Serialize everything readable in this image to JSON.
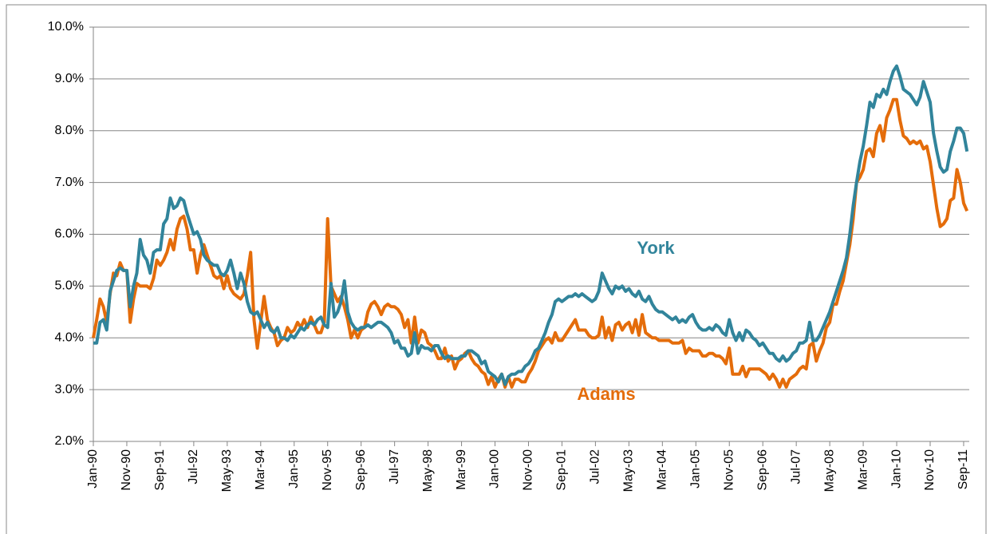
{
  "chart_data": {
    "type": "line",
    "categories": [
      "Jan-90",
      null,
      null,
      null,
      null,
      null,
      null,
      null,
      null,
      null,
      "Nov-90",
      null,
      null,
      null,
      null,
      null,
      null,
      null,
      null,
      null,
      "Sep-91",
      null,
      null,
      null,
      null,
      null,
      null,
      null,
      null,
      null,
      "Jul-92",
      null,
      null,
      null,
      null,
      null,
      null,
      null,
      null,
      null,
      "May-93",
      null,
      null,
      null,
      null,
      null,
      null,
      null,
      null,
      null,
      "Mar-94",
      null,
      null,
      null,
      null,
      null,
      null,
      null,
      null,
      null,
      "Jan-95",
      null,
      null,
      null,
      null,
      null,
      null,
      null,
      null,
      null,
      "Nov-95",
      null,
      null,
      null,
      null,
      null,
      null,
      null,
      null,
      null,
      "Sep-96",
      null,
      null,
      null,
      null,
      null,
      null,
      null,
      null,
      null,
      "Jul-97",
      null,
      null,
      null,
      null,
      null,
      null,
      null,
      null,
      null,
      "May-98",
      null,
      null,
      null,
      null,
      null,
      null,
      null,
      null,
      null,
      "Mar-99",
      null,
      null,
      null,
      null,
      null,
      null,
      null,
      null,
      null,
      "Jan-00",
      null,
      null,
      null,
      null,
      null,
      null,
      null,
      null,
      null,
      "Nov-00",
      null,
      null,
      null,
      null,
      null,
      null,
      null,
      null,
      null,
      "Sep-01",
      null,
      null,
      null,
      null,
      null,
      null,
      null,
      null,
      null,
      "Jul-02",
      null,
      null,
      null,
      null,
      null,
      null,
      null,
      null,
      null,
      "May-03",
      null,
      null,
      null,
      null,
      null,
      null,
      null,
      null,
      null,
      "Mar-04",
      null,
      null,
      null,
      null,
      null,
      null,
      null,
      null,
      null,
      "Jan-05",
      null,
      null,
      null,
      null,
      null,
      null,
      null,
      null,
      null,
      "Nov-05",
      null,
      null,
      null,
      null,
      null,
      null,
      null,
      null,
      null,
      "Sep-06",
      null,
      null,
      null,
      null,
      null,
      null,
      null,
      null,
      null,
      "Jul-07",
      null,
      null,
      null,
      null,
      null,
      null,
      null,
      null,
      null,
      "May-08",
      null,
      null,
      null,
      null,
      null,
      null,
      null,
      null,
      null,
      "Mar-09",
      null,
      null,
      null,
      null,
      null,
      null,
      null,
      null,
      null,
      "Jan-10",
      null,
      null,
      null,
      null,
      null,
      null,
      null,
      null,
      null,
      "Nov-10",
      null,
      null,
      null,
      null,
      null,
      null,
      null,
      null,
      null,
      "Sep-11",
      null
    ],
    "series": [
      {
        "name": "York",
        "color": "#31849b",
        "values": [
          3.9,
          3.9,
          4.3,
          4.35,
          4.15,
          4.9,
          5.1,
          5.3,
          5.35,
          5.3,
          5.3,
          4.6,
          5.0,
          5.25,
          5.9,
          5.6,
          5.5,
          5.25,
          5.65,
          5.7,
          5.7,
          6.2,
          6.3,
          6.7,
          6.5,
          6.55,
          6.7,
          6.65,
          6.4,
          6.2,
          6.0,
          6.05,
          5.9,
          5.6,
          5.5,
          5.45,
          5.4,
          5.4,
          5.25,
          5.2,
          5.3,
          5.5,
          5.25,
          4.95,
          5.25,
          5.05,
          4.7,
          4.5,
          4.45,
          4.5,
          4.35,
          4.2,
          4.3,
          4.15,
          4.1,
          4.2,
          4.0,
          4.0,
          3.95,
          4.05,
          4.0,
          4.1,
          4.2,
          4.15,
          4.25,
          4.3,
          4.25,
          4.35,
          4.4,
          4.25,
          4.2,
          5.05,
          4.4,
          4.5,
          4.7,
          5.1,
          4.5,
          4.3,
          4.2,
          4.15,
          4.2,
          4.2,
          4.25,
          4.2,
          4.25,
          4.3,
          4.3,
          4.25,
          4.2,
          4.1,
          3.9,
          3.95,
          3.8,
          3.8,
          3.65,
          3.7,
          4.1,
          3.7,
          3.85,
          3.8,
          3.8,
          3.75,
          3.85,
          3.85,
          3.7,
          3.6,
          3.65,
          3.6,
          3.6,
          3.6,
          3.65,
          3.65,
          3.75,
          3.75,
          3.7,
          3.65,
          3.5,
          3.55,
          3.35,
          3.3,
          3.25,
          3.15,
          3.3,
          3.1,
          3.25,
          3.3,
          3.3,
          3.35,
          3.35,
          3.45,
          3.5,
          3.6,
          3.75,
          3.8,
          3.95,
          4.1,
          4.3,
          4.45,
          4.7,
          4.75,
          4.7,
          4.75,
          4.8,
          4.8,
          4.85,
          4.8,
          4.85,
          4.8,
          4.75,
          4.7,
          4.75,
          4.9,
          5.25,
          5.1,
          4.95,
          4.85,
          5.0,
          4.95,
          5.0,
          4.9,
          4.95,
          4.85,
          4.8,
          4.9,
          4.75,
          4.7,
          4.8,
          4.65,
          4.55,
          4.5,
          4.5,
          4.45,
          4.4,
          4.35,
          4.4,
          4.3,
          4.35,
          4.3,
          4.4,
          4.45,
          4.3,
          4.2,
          4.15,
          4.15,
          4.2,
          4.15,
          4.25,
          4.2,
          4.1,
          4.05,
          4.35,
          4.1,
          3.95,
          4.1,
          3.95,
          4.15,
          4.1,
          4.0,
          3.95,
          3.85,
          3.9,
          3.8,
          3.7,
          3.7,
          3.6,
          3.55,
          3.65,
          3.55,
          3.6,
          3.7,
          3.75,
          3.9,
          3.9,
          3.95,
          4.3,
          3.95,
          3.95,
          4.05,
          4.2,
          4.35,
          4.5,
          4.7,
          4.9,
          5.1,
          5.3,
          5.55,
          6.0,
          6.55,
          7.0,
          7.4,
          7.7,
          8.1,
          8.55,
          8.45,
          8.7,
          8.65,
          8.8,
          8.7,
          8.95,
          9.15,
          9.25,
          9.05,
          8.8,
          8.75,
          8.7,
          8.6,
          8.5,
          8.65,
          8.95,
          8.75,
          8.55,
          7.95,
          7.6,
          7.3,
          7.2,
          7.25,
          7.6,
          7.8,
          8.05,
          8.05,
          7.95,
          7.6
        ]
      },
      {
        "name": "Adams",
        "color": "#e46c0a",
        "values": [
          4.0,
          4.35,
          4.75,
          4.6,
          4.3,
          4.85,
          5.25,
          5.2,
          5.45,
          5.3,
          5.3,
          4.3,
          4.75,
          5.05,
          5.0,
          5.0,
          5.0,
          4.95,
          5.15,
          5.5,
          5.4,
          5.5,
          5.65,
          5.9,
          5.7,
          6.1,
          6.3,
          6.35,
          6.1,
          5.7,
          5.7,
          5.25,
          5.6,
          5.8,
          5.6,
          5.4,
          5.2,
          5.15,
          5.2,
          4.95,
          5.2,
          4.95,
          4.85,
          4.8,
          4.75,
          4.85,
          5.2,
          5.65,
          4.35,
          3.8,
          4.3,
          4.8,
          4.35,
          4.2,
          4.1,
          3.85,
          3.95,
          4.0,
          4.2,
          4.1,
          4.15,
          4.3,
          4.2,
          4.35,
          4.2,
          4.4,
          4.25,
          4.1,
          4.1,
          4.3,
          6.3,
          5.0,
          4.85,
          4.7,
          4.8,
          4.6,
          4.35,
          4.0,
          4.15,
          4.0,
          4.15,
          4.2,
          4.5,
          4.65,
          4.7,
          4.6,
          4.45,
          4.6,
          4.65,
          4.6,
          4.6,
          4.55,
          4.45,
          4.2,
          4.35,
          3.9,
          4.4,
          3.9,
          4.15,
          4.1,
          3.9,
          3.85,
          3.75,
          3.6,
          3.6,
          3.8,
          3.55,
          3.65,
          3.4,
          3.55,
          3.6,
          3.7,
          3.75,
          3.6,
          3.5,
          3.45,
          3.35,
          3.3,
          3.1,
          3.25,
          3.05,
          3.2,
          3.3,
          3.05,
          3.25,
          3.05,
          3.2,
          3.2,
          3.15,
          3.15,
          3.3,
          3.4,
          3.55,
          3.75,
          3.85,
          3.95,
          4.0,
          3.9,
          4.1,
          3.95,
          3.95,
          4.05,
          4.15,
          4.25,
          4.35,
          4.15,
          4.15,
          4.15,
          4.05,
          4.0,
          4.0,
          4.05,
          4.4,
          4.0,
          4.2,
          3.95,
          4.25,
          4.3,
          4.15,
          4.25,
          4.3,
          4.1,
          4.35,
          4.05,
          4.45,
          4.1,
          4.05,
          4.0,
          4.0,
          3.95,
          3.95,
          3.95,
          3.95,
          3.9,
          3.9,
          3.9,
          3.95,
          3.7,
          3.8,
          3.75,
          3.75,
          3.75,
          3.65,
          3.65,
          3.7,
          3.7,
          3.65,
          3.65,
          3.6,
          3.5,
          3.8,
          3.3,
          3.3,
          3.3,
          3.45,
          3.25,
          3.4,
          3.4,
          3.4,
          3.4,
          3.35,
          3.3,
          3.2,
          3.3,
          3.2,
          3.05,
          3.2,
          3.05,
          3.2,
          3.25,
          3.3,
          3.4,
          3.45,
          3.4,
          3.85,
          3.9,
          3.55,
          3.75,
          3.9,
          4.2,
          4.3,
          4.65,
          4.65,
          4.9,
          5.1,
          5.45,
          5.8,
          6.3,
          7.0,
          7.1,
          7.25,
          7.6,
          7.65,
          7.5,
          7.95,
          8.1,
          7.8,
          8.25,
          8.4,
          8.6,
          8.6,
          8.2,
          7.9,
          7.85,
          7.75,
          7.8,
          7.75,
          7.8,
          7.65,
          7.7,
          7.4,
          6.95,
          6.5,
          6.15,
          6.2,
          6.3,
          6.65,
          6.7,
          7.25,
          7.0,
          6.6,
          6.45
        ]
      }
    ],
    "ylim": [
      2,
      10
    ],
    "yticks": [
      {
        "value": 2,
        "label": "2.0%"
      },
      {
        "value": 3,
        "label": "3.0%"
      },
      {
        "value": 4,
        "label": "4.0%"
      },
      {
        "value": 5,
        "label": "5.0%"
      },
      {
        "value": 6,
        "label": "6.0%"
      },
      {
        "value": 7,
        "label": "7.0%"
      },
      {
        "value": 8,
        "label": "8.0%"
      },
      {
        "value": 9,
        "label": "9.0%"
      },
      {
        "value": 10,
        "label": "10.0%"
      }
    ],
    "grid": true
  }
}
